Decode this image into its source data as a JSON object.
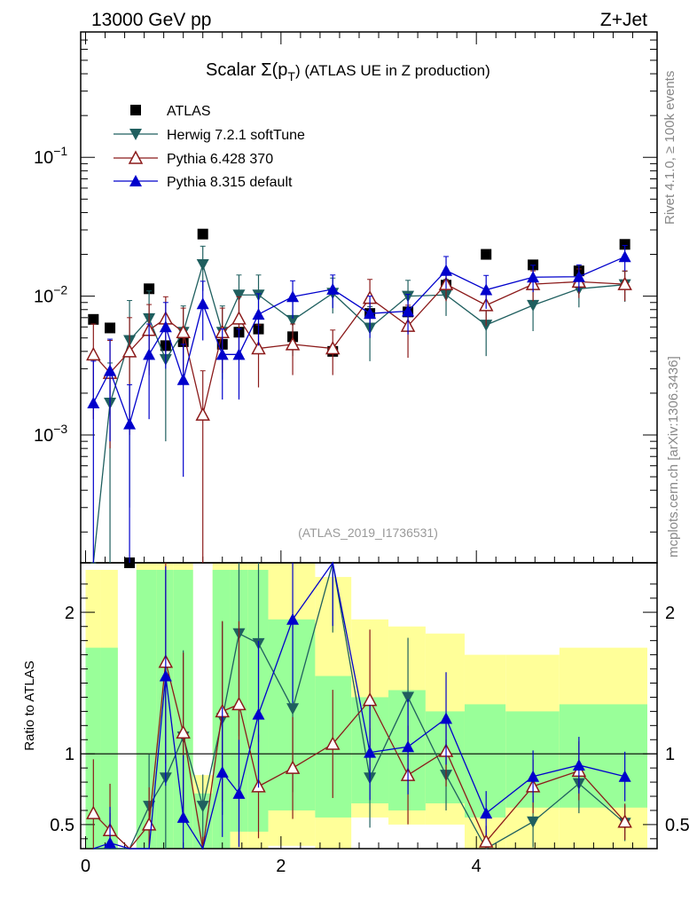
{
  "header": {
    "left": "13000 GeV pp",
    "right": "Z+Jet"
  },
  "side": {
    "rivet": "Rivet 4.1.0, ≥ 100k events",
    "mcplots": "mcplots.cern.ch [arXiv:1306.3436]"
  },
  "chart_data": {
    "type": "scatter",
    "title_prefix": "Scalar Σ(p",
    "title_sub": "T",
    "title_suffix": ") (ATLAS UE in Z production)",
    "watermark": "(ATLAS_2019_I1736531)",
    "ylabel_ratio": "Ratio to ATLAS",
    "xlim": [
      -0.05,
      5.85
    ],
    "ylim_main": [
      0.00012,
      0.8
    ],
    "ylim_ratio": [
      0.33,
      2.35
    ],
    "x_ticks": [
      "0",
      "2",
      "4"
    ],
    "main_y_ticks": [
      {
        "base": "10",
        "exp": "−1",
        "value": 0.1
      },
      {
        "base": "10",
        "exp": "−2",
        "value": 0.01
      },
      {
        "base": "10",
        "exp": "−3",
        "value": 0.001
      }
    ],
    "ratio_y_ticks": [
      "0.5",
      "1",
      "2"
    ],
    "ratio_y_values": [
      0.5,
      1,
      2
    ],
    "series": [
      {
        "name": "ATLAS",
        "color": "#000000",
        "marker": "square",
        "x": [
          0.08,
          0.25,
          0.45,
          0.65,
          0.82,
          1.0,
          1.2,
          1.4,
          1.57,
          1.77,
          2.12,
          2.53,
          2.91,
          3.3,
          3.69,
          4.1,
          4.58,
          5.05,
          5.52
        ],
        "y": [
          0.0068,
          0.0059,
          0.00012,
          0.0113,
          0.0044,
          0.0047,
          0.028,
          0.0045,
          0.0055,
          0.0058,
          0.0051,
          0.004,
          0.0075,
          0.0077,
          0.012,
          0.02,
          0.0168,
          0.0152,
          0.0236
        ]
      },
      {
        "name": "Herwig 7.2.1 softTune",
        "color": "#1f5f5f",
        "marker": "triangle-down",
        "x": [
          0.08,
          0.25,
          0.45,
          0.65,
          0.82,
          1.0,
          1.2,
          1.4,
          1.57,
          1.77,
          2.12,
          2.53,
          2.91,
          3.3,
          3.69,
          4.1,
          4.58,
          5.05,
          5.52
        ],
        "y": [
          1e-05,
          0.0017,
          0.0048,
          0.0069,
          0.0035,
          0.0055,
          0.0169,
          0.0055,
          0.0102,
          0.0102,
          0.0067,
          0.0105,
          0.0059,
          0.01,
          0.0102,
          0.0062,
          0.0086,
          0.0113,
          0.0121
        ],
        "err": [
          0,
          0.0016,
          0.0045,
          0.004,
          0.0026,
          0.003,
          0.006,
          0.003,
          0.004,
          0.004,
          0.003,
          0.003,
          0.0025,
          0.003,
          0.003,
          0.0025,
          0.003,
          0.003,
          0.003
        ],
        "ratio": [
          0.01,
          0.3,
          0.01,
          0.63,
          0.83,
          1.12,
          0.63,
          1.25,
          1.85,
          1.78,
          1.32,
          2.6,
          0.83,
          1.4,
          0.85,
          0.31,
          0.52,
          0.79,
          0.51
        ]
      },
      {
        "name": "Pythia 6.428 370",
        "color": "#8b1a1a",
        "marker": "triangle-up-open",
        "x": [
          0.08,
          0.25,
          0.45,
          0.65,
          0.82,
          1.0,
          1.2,
          1.4,
          1.57,
          1.77,
          2.12,
          2.53,
          2.91,
          3.3,
          3.69,
          4.1,
          4.58,
          5.05,
          5.52
        ],
        "y": [
          0.0038,
          0.0028,
          0.004,
          0.0057,
          0.0069,
          0.0055,
          0.0014,
          0.0055,
          0.0069,
          0.0042,
          0.0045,
          0.0042,
          0.0097,
          0.0061,
          0.0122,
          0.0086,
          0.0122,
          0.0127,
          0.0122
        ],
        "err": [
          0.0025,
          0.002,
          0.003,
          0.003,
          0.003,
          0.0027,
          0.0015,
          0.0027,
          0.003,
          0.002,
          0.0018,
          0.0015,
          0.0035,
          0.0025,
          0.003,
          0.0025,
          0.003,
          0.003,
          0.003
        ],
        "ratio": [
          0.58,
          0.46,
          0.01,
          0.5,
          1.65,
          1.15,
          0.2,
          1.3,
          1.35,
          0.77,
          0.9,
          1.07,
          1.38,
          0.85,
          1.02,
          0.38,
          0.77,
          0.88,
          0.52
        ]
      },
      {
        "name": "Pythia 8.315 default",
        "color": "#0000cc",
        "marker": "triangle-up",
        "x": [
          0.08,
          0.25,
          0.45,
          0.65,
          0.82,
          1.0,
          1.2,
          1.4,
          1.57,
          1.77,
          2.12,
          2.53,
          2.91,
          3.3,
          3.69,
          4.1,
          4.58,
          5.05,
          5.52
        ],
        "y": [
          0.0017,
          0.0029,
          0.0012,
          0.0038,
          0.006,
          0.0025,
          0.0088,
          0.0038,
          0.0038,
          0.0074,
          0.0099,
          0.0112,
          0.0075,
          0.0078,
          0.0153,
          0.0111,
          0.0137,
          0.0138,
          0.0192
        ],
        "err": [
          0.0017,
          0.002,
          0.0011,
          0.0025,
          0.003,
          0.002,
          0.004,
          0.002,
          0.002,
          0.003,
          0.003,
          0.003,
          0.0025,
          0.0025,
          0.004,
          0.003,
          0.003,
          0.003,
          0.004
        ],
        "ratio": [
          0.01,
          0.37,
          0.01,
          0.01,
          1.55,
          0.55,
          0.01,
          0.87,
          0.72,
          1.28,
          1.95,
          2.6,
          1.01,
          1.05,
          1.25,
          0.58,
          0.84,
          0.92,
          0.84
        ]
      }
    ],
    "ratio_bands": {
      "edges": [
        0.0,
        0.15,
        0.33,
        0.52,
        0.73,
        0.9,
        1.1,
        1.3,
        1.48,
        1.66,
        1.87,
        2.35,
        2.72,
        3.1,
        3.48,
        3.88,
        4.3,
        4.85,
        5.75
      ],
      "green_lo": [
        0.33,
        0.33,
        null,
        0.33,
        0.33,
        0.33,
        0.33,
        0.33,
        0.45,
        0.45,
        0.6,
        0.55,
        0.65,
        0.6,
        0.65,
        0.55,
        0.62,
        0.62,
        0.68
      ],
      "green_hi": [
        1.75,
        1.75,
        null,
        2.3,
        2.3,
        2.3,
        0.72,
        2.3,
        2.3,
        2.3,
        1.95,
        1.55,
        1.4,
        1.45,
        1.3,
        1.35,
        1.3,
        1.35,
        1.35
      ],
      "yellow_lo": [
        0.33,
        0.33,
        null,
        0.33,
        0.33,
        0.33,
        0.33,
        0.33,
        0.33,
        0.33,
        0.35,
        0.33,
        0.55,
        0.5,
        0.5,
        0.33,
        0.33,
        0.33,
        0.55
      ],
      "yellow_hi": [
        2.3,
        2.3,
        null,
        2.35,
        2.35,
        2.35,
        0.85,
        2.35,
        2.35,
        2.35,
        2.35,
        2.25,
        1.95,
        1.9,
        1.85,
        1.7,
        1.7,
        1.75,
        1.75
      ]
    }
  }
}
